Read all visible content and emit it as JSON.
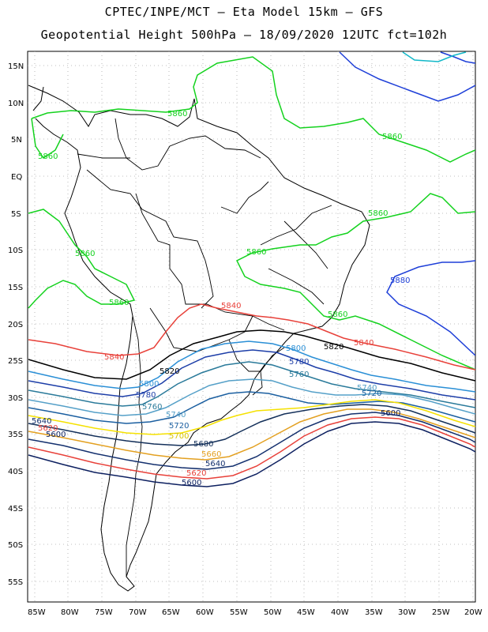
{
  "title": {
    "line1": "CPTEC/INPE/MCT –  Eta Model 15km – GFS",
    "line2": "Geopotential Height 500hPa – 18/09/2020 12UTC fct=102h"
  },
  "axes": {
    "lat_labels": [
      "15N",
      "10N",
      "5N",
      "EQ",
      "5S",
      "10S",
      "15S",
      "20S",
      "25S",
      "30S",
      "35S",
      "40S",
      "45S",
      "50S",
      "55S"
    ],
    "lon_labels": [
      "85W",
      "80W",
      "75W",
      "70W",
      "65W",
      "60W",
      "55W",
      "50W",
      "45W",
      "40W",
      "35W",
      "30W",
      "25W",
      "20W"
    ]
  },
  "contour_colors": {
    "5880": "#1e3fd8",
    "5860": "#14d21e",
    "5840": "#e8413a",
    "5820": "#000000",
    "5800": "#2a8fd6",
    "5780": "#1d3ea8",
    "5760": "#2a7a9a",
    "5740": "#55a0c8",
    "5720": "#1b5fa0",
    "5700": "#f5e100",
    "5680": "#14305a",
    "5660": "#e3a020",
    "5640": "#14306e",
    "5620": "#e8413a",
    "5600": "#0d2060"
  },
  "contour_labels": [
    {
      "id": "l5860a",
      "text": "5860",
      "color": "#14d21e"
    },
    {
      "id": "l5860b",
      "text": "5860",
      "color": "#14d21e"
    },
    {
      "id": "l5860c",
      "text": "5860",
      "color": "#14d21e"
    },
    {
      "id": "l5860d",
      "text": "5860",
      "color": "#14d21e"
    },
    {
      "id": "l5860e",
      "text": "5860",
      "color": "#14d21e"
    },
    {
      "id": "l5860f",
      "text": "5860",
      "color": "#14d21e"
    },
    {
      "id": "l5860g",
      "text": "5860",
      "color": "#14d21e"
    },
    {
      "id": "l5860h",
      "text": "5860",
      "color": "#14d21e"
    },
    {
      "id": "l5880a",
      "text": "5880",
      "color": "#1e3fd8"
    },
    {
      "id": "l5840a",
      "text": "5840",
      "color": "#e8413a"
    },
    {
      "id": "l5840b",
      "text": "5840",
      "color": "#e8413a"
    },
    {
      "id": "l5840c",
      "text": "5840",
      "color": "#e8413a"
    },
    {
      "id": "l5820a",
      "text": "5820",
      "color": "#000000"
    },
    {
      "id": "l5820b",
      "text": "5820",
      "color": "#000000"
    },
    {
      "id": "l5800a",
      "text": "5800",
      "color": "#2a8fd6"
    },
    {
      "id": "l5800b",
      "text": "5800",
      "color": "#2a8fd6"
    },
    {
      "id": "l5780a",
      "text": "5780",
      "color": "#1d3ea8"
    },
    {
      "id": "l5780b",
      "text": "5780",
      "color": "#1d3ea8"
    },
    {
      "id": "l5760a",
      "text": "5760",
      "color": "#2a7a9a"
    },
    {
      "id": "l5760b",
      "text": "5760",
      "color": "#2a7a9a"
    },
    {
      "id": "l5740a",
      "text": "5740",
      "color": "#55a0c8"
    },
    {
      "id": "l5740b",
      "text": "5740",
      "color": "#55a0c8"
    },
    {
      "id": "l5720a",
      "text": "5720",
      "color": "#1b5fa0"
    },
    {
      "id": "l5720b",
      "text": "5720",
      "color": "#1b5fa0"
    },
    {
      "id": "l5700a",
      "text": "5700",
      "color": "#d8c400"
    },
    {
      "id": "l5680a",
      "text": "5680",
      "color": "#14305a"
    },
    {
      "id": "l5660a",
      "text": "5660",
      "color": "#e3a020"
    },
    {
      "id": "l5640a",
      "text": "5640",
      "color": "#14306e"
    },
    {
      "id": "l5640b",
      "text": "5640",
      "color": "#14306e"
    },
    {
      "id": "l5620a",
      "text": "5620",
      "color": "#e8413a"
    },
    {
      "id": "l5620b",
      "text": "5620",
      "color": "#e8413a"
    },
    {
      "id": "l5600a",
      "text": "5600",
      "color": "#0d2060"
    },
    {
      "id": "l5600b",
      "text": "5600",
      "color": "#0d2060"
    },
    {
      "id": "l5600c",
      "text": "5600",
      "color": "#0d2060"
    }
  ]
}
